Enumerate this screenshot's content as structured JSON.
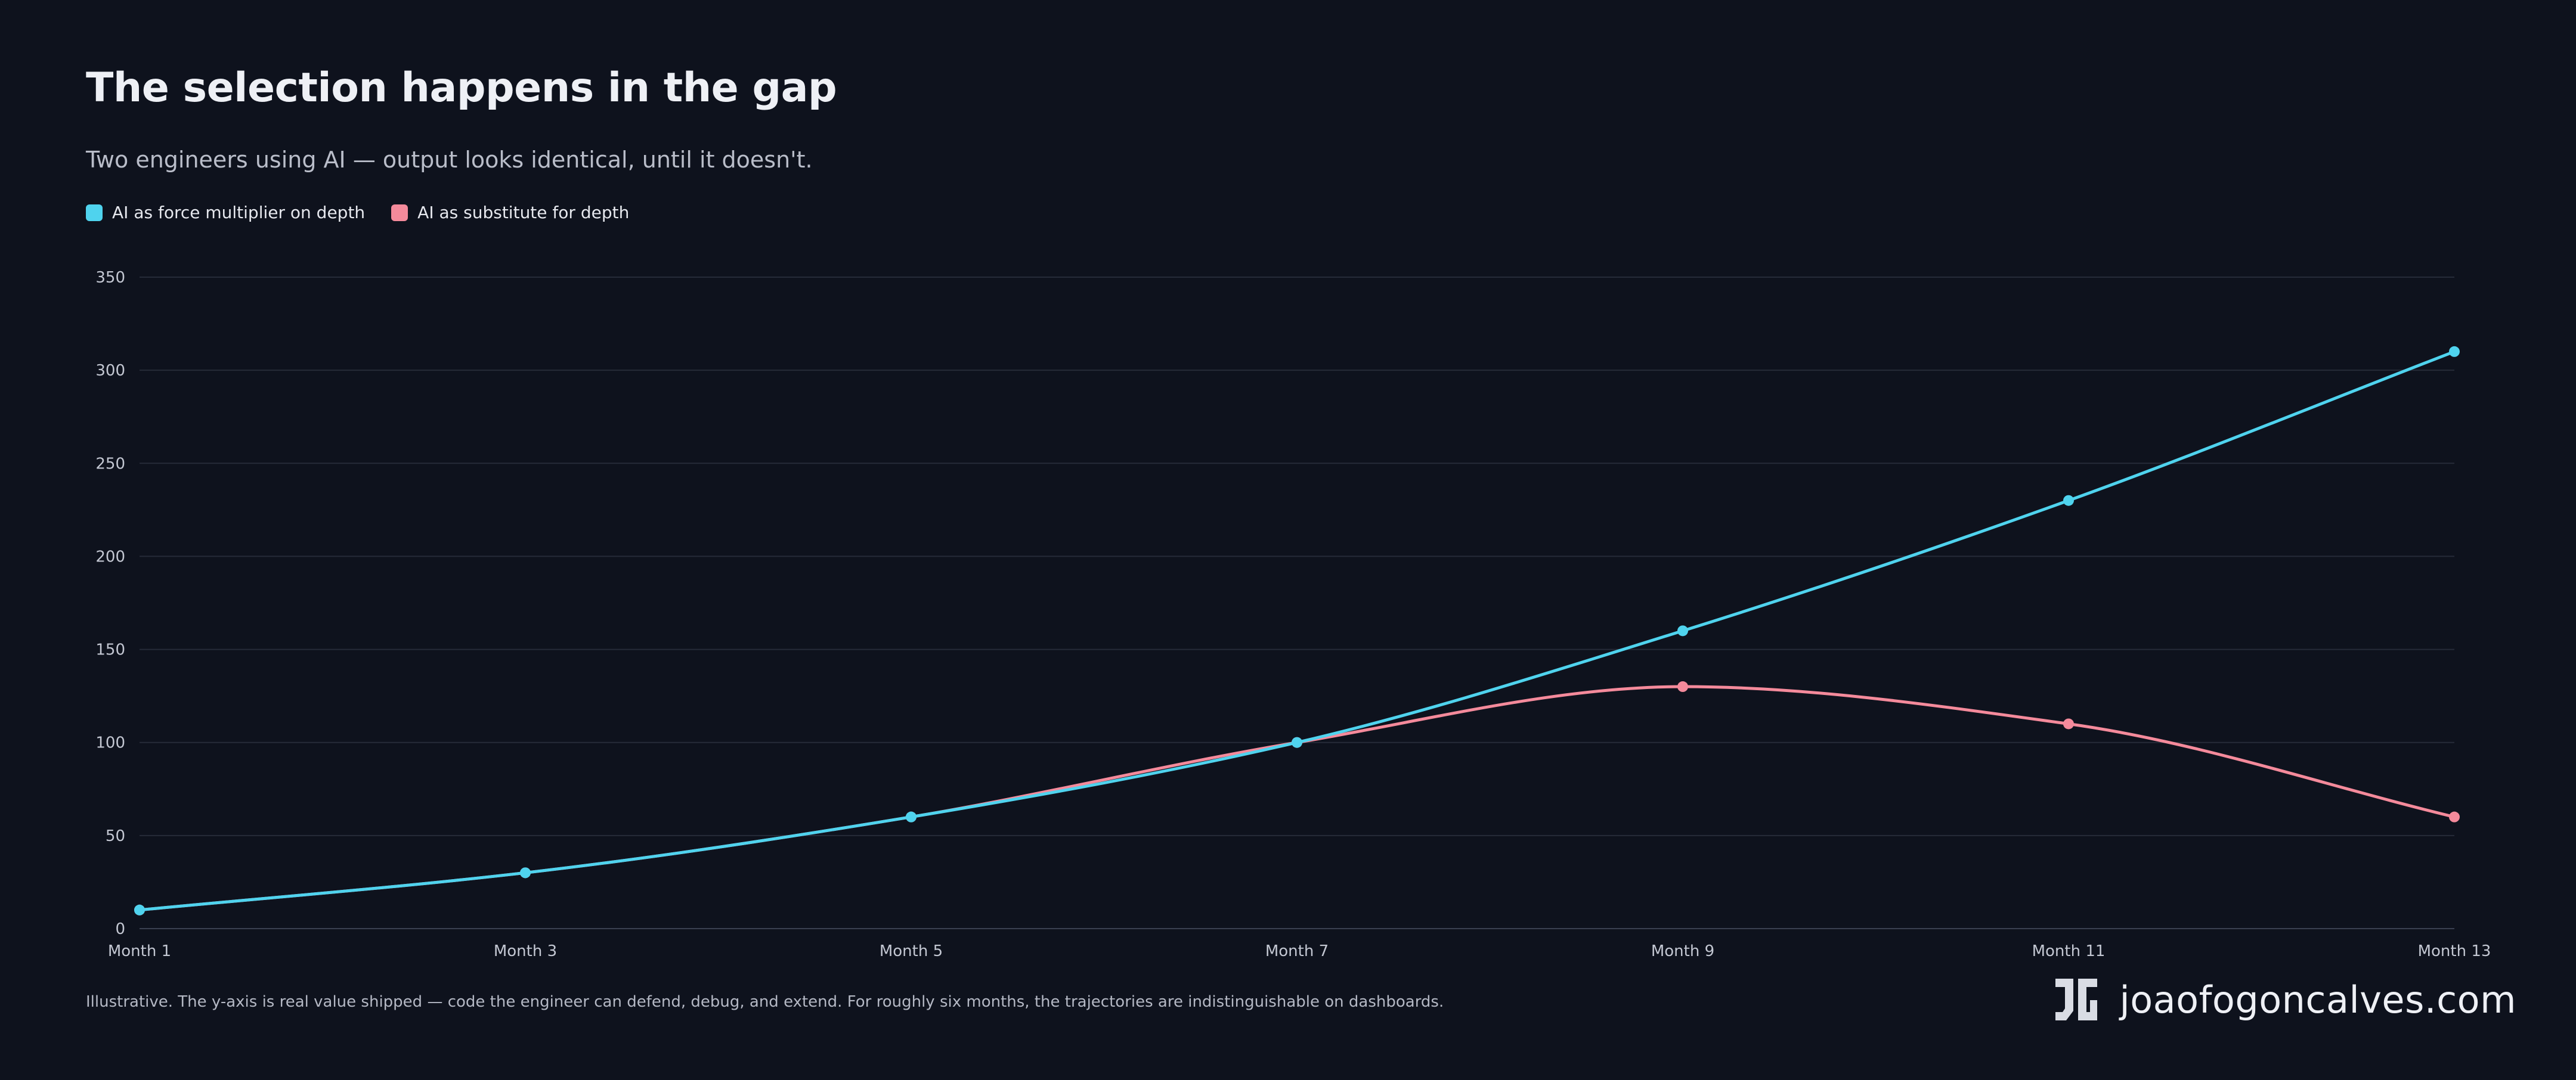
{
  "header": {
    "title": "The selection happens in the gap",
    "subtitle": "Two engineers using AI — output looks identical, until it doesn't."
  },
  "footer": {
    "note": "Illustrative. The y-axis is real value shipped — code the engineer can defend, debug, and extend. For roughly six months, the trajectories are indistinguishable on dashboards.",
    "brand": "joaofogoncalves.com",
    "logo_text": "JG"
  },
  "colors": {
    "background": "#0e121d",
    "grid": "#262b38",
    "series_force": "#4fd3ee",
    "series_substitute": "#f48a9b"
  },
  "chart_data": {
    "type": "line",
    "title": "The selection happens in the gap",
    "subtitle": "Two engineers using AI — output looks identical, until it doesn't.",
    "xlabel": "",
    "ylabel": "",
    "x": [
      "Month 1",
      "Month 3",
      "Month 5",
      "Month 7",
      "Month 9",
      "Month 11",
      "Month 13"
    ],
    "ylim": [
      0,
      350
    ],
    "yticks": [
      0,
      50,
      100,
      150,
      200,
      250,
      300,
      350
    ],
    "grid": true,
    "legend_position": "top-left",
    "series": [
      {
        "name": "AI as force multiplier on depth",
        "color": "#4fd3ee",
        "values": [
          10,
          30,
          60,
          100,
          160,
          230,
          310
        ]
      },
      {
        "name": "AI as substitute for depth",
        "color": "#f48a9b",
        "values": [
          10,
          30,
          60,
          100,
          130,
          110,
          60
        ]
      }
    ]
  }
}
